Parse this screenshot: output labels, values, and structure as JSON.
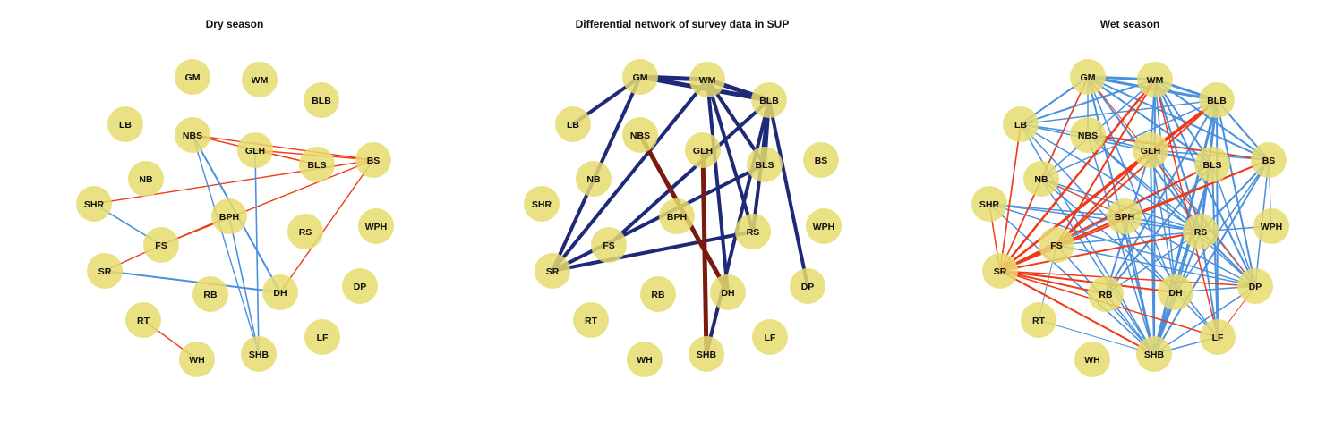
{
  "colors": {
    "node_fill": "#e6da6e",
    "positive_edge": "#4a90dc",
    "negative_edge": "#f03a17",
    "diff_positive": "#1e2a78",
    "diff_negative": "#7a1a0c"
  },
  "panels": [
    {
      "id": "dry",
      "title": "Dry season",
      "edges": [
        [
          "NBS",
          "BLS",
          "neg",
          1.4
        ],
        [
          "NBS",
          "BS",
          "neg",
          1.4
        ],
        [
          "GLH",
          "BS",
          "neg",
          1.4
        ],
        [
          "GLH",
          "BLS",
          "neg",
          1.4
        ],
        [
          "SHR",
          "BS",
          "neg",
          1.4
        ],
        [
          "FS",
          "BPH",
          "neg",
          1.4
        ],
        [
          "FS",
          "BS",
          "neg",
          1.4
        ],
        [
          "SR",
          "FS",
          "neg",
          1.4
        ],
        [
          "RT",
          "WH",
          "neg",
          1.4
        ],
        [
          "DH",
          "BS",
          "neg",
          1.4
        ],
        [
          "NBS",
          "DH",
          "pos",
          2
        ],
        [
          "NBS",
          "SHB",
          "pos",
          1.4
        ],
        [
          "GLH",
          "SHB",
          "pos",
          1.6
        ],
        [
          "SHR",
          "FS",
          "pos",
          1.6
        ],
        [
          "SR",
          "DH",
          "pos",
          2
        ],
        [
          "BPH",
          "SHB",
          "pos",
          1.6
        ]
      ]
    },
    {
      "id": "diff",
      "title": "Differential network of survey data in SUP",
      "edges": [
        [
          "GM",
          "WM",
          "dpos",
          5
        ],
        [
          "GM",
          "BLB",
          "dpos",
          5
        ],
        [
          "GM",
          "LB",
          "dpos",
          4
        ],
        [
          "GM",
          "SR",
          "dpos",
          4
        ],
        [
          "WM",
          "BLB",
          "dpos",
          5
        ],
        [
          "WM",
          "SR",
          "dpos",
          4
        ],
        [
          "WM",
          "RS",
          "dpos",
          4
        ],
        [
          "WM",
          "BLS",
          "dpos",
          4
        ],
        [
          "WM",
          "DH",
          "dpos",
          4
        ],
        [
          "BLB",
          "BLS",
          "dpos",
          4
        ],
        [
          "BLB",
          "DP",
          "dpos",
          4
        ],
        [
          "BLB",
          "SHB",
          "dpos",
          4
        ],
        [
          "BLB",
          "FS",
          "dpos",
          4
        ],
        [
          "BLB",
          "RS",
          "dpos",
          4
        ],
        [
          "BLS",
          "SR",
          "dpos",
          4
        ],
        [
          "RS",
          "SR",
          "dpos",
          4
        ],
        [
          "NBS",
          "DH",
          "dneg",
          5
        ],
        [
          "GLH",
          "SHB",
          "dneg",
          5
        ]
      ]
    },
    {
      "id": "wet",
      "title": "Wet season",
      "edges": [
        [
          "GM",
          "WM",
          "pos",
          3
        ],
        [
          "GM",
          "BLB",
          "pos",
          3
        ],
        [
          "GM",
          "LB",
          "pos",
          2
        ],
        [
          "GM",
          "NB",
          "pos",
          1.5
        ],
        [
          "GM",
          "BS",
          "pos",
          2
        ],
        [
          "GM",
          "RS",
          "pos",
          2
        ],
        [
          "GM",
          "SHB",
          "pos",
          2
        ],
        [
          "GM",
          "DH",
          "pos",
          1.5
        ],
        [
          "GM",
          "BLS",
          "pos",
          2
        ],
        [
          "GM",
          "NBS",
          "pos",
          1.5
        ],
        [
          "WM",
          "BLB",
          "pos",
          3
        ],
        [
          "WM",
          "LB",
          "pos",
          2
        ],
        [
          "WM",
          "BLS",
          "pos",
          2
        ],
        [
          "WM",
          "RS",
          "pos",
          2
        ],
        [
          "WM",
          "DP",
          "pos",
          2
        ],
        [
          "WM",
          "SHB",
          "pos",
          2
        ],
        [
          "WM",
          "DH",
          "pos",
          1.5
        ],
        [
          "WM",
          "GLH",
          "pos",
          2
        ],
        [
          "WM",
          "NB",
          "pos",
          1.5
        ],
        [
          "WM",
          "BS",
          "pos",
          2
        ],
        [
          "BLB",
          "BS",
          "pos",
          2
        ],
        [
          "BLB",
          "RS",
          "pos",
          3
        ],
        [
          "BLB",
          "SHB",
          "pos",
          3
        ],
        [
          "BLB",
          "DP",
          "pos",
          2
        ],
        [
          "BLB",
          "RB",
          "pos",
          2
        ],
        [
          "BLB",
          "LF",
          "pos",
          2
        ],
        [
          "BLB",
          "NB",
          "pos",
          1.5
        ],
        [
          "BLB",
          "LB",
          "pos",
          1.5
        ],
        [
          "LB",
          "BLS",
          "pos",
          1.5
        ],
        [
          "LB",
          "RS",
          "pos",
          1.5
        ],
        [
          "LB",
          "SHB",
          "pos",
          1.5
        ],
        [
          "LB",
          "BS",
          "pos",
          1.5
        ],
        [
          "LB",
          "DH",
          "pos",
          1.5
        ],
        [
          "NBS",
          "RS",
          "pos",
          1.5
        ],
        [
          "NBS",
          "DP",
          "pos",
          1.5
        ],
        [
          "NBS",
          "SHB",
          "pos",
          1.5
        ],
        [
          "NBS",
          "BLS",
          "pos",
          1.5
        ],
        [
          "GLH",
          "RB",
          "pos",
          2
        ],
        [
          "GLH",
          "SHB",
          "pos",
          2
        ],
        [
          "GLH",
          "RS",
          "pos",
          2
        ],
        [
          "GLH",
          "DP",
          "pos",
          1.5
        ],
        [
          "GLH",
          "DH",
          "pos",
          1.5
        ],
        [
          "GLH",
          "BS",
          "pos",
          1.5
        ],
        [
          "BLS",
          "RB",
          "pos",
          2
        ],
        [
          "BLS",
          "DH",
          "pos",
          2
        ],
        [
          "BLS",
          "SHB",
          "pos",
          2
        ],
        [
          "BLS",
          "DP",
          "pos",
          1.5
        ],
        [
          "BLS",
          "LF",
          "pos",
          2
        ],
        [
          "BS",
          "RS",
          "pos",
          2
        ],
        [
          "BS",
          "SHB",
          "pos",
          2
        ],
        [
          "BS",
          "DP",
          "pos",
          1.5
        ],
        [
          "BS",
          "DH",
          "pos",
          1.5
        ],
        [
          "NB",
          "RS",
          "pos",
          1.5
        ],
        [
          "NB",
          "SHB",
          "pos",
          1.5
        ],
        [
          "NB",
          "BPH",
          "pos",
          1.5
        ],
        [
          "NB",
          "DH",
          "pos",
          1.5
        ],
        [
          "SHR",
          "RS",
          "pos",
          1.5
        ],
        [
          "SHR",
          "BPH",
          "pos",
          1.5
        ],
        [
          "SHR",
          "DP",
          "pos",
          1.5
        ],
        [
          "SHR",
          "SHB",
          "pos",
          1.5
        ],
        [
          "BPH",
          "RS",
          "pos",
          2
        ],
        [
          "BPH",
          "SHB",
          "pos",
          1.5
        ],
        [
          "BPH",
          "DP",
          "pos",
          1.5
        ],
        [
          "BPH",
          "LF",
          "pos",
          1.5
        ],
        [
          "FS",
          "RS",
          "pos",
          1.5
        ],
        [
          "FS",
          "SHB",
          "pos",
          1.5
        ],
        [
          "FS",
          "DP",
          "pos",
          1.5
        ],
        [
          "FS",
          "BLS",
          "pos",
          1.5
        ],
        [
          "FS",
          "RT",
          "pos",
          1
        ],
        [
          "RS",
          "DP",
          "pos",
          2
        ],
        [
          "RS",
          "LF",
          "pos",
          2
        ],
        [
          "RS",
          "SHB",
          "pos",
          2
        ],
        [
          "RS",
          "RB",
          "pos",
          1.5
        ],
        [
          "RS",
          "WPH",
          "pos",
          1.5
        ],
        [
          "DH",
          "LF",
          "pos",
          1.5
        ],
        [
          "DH",
          "SHB",
          "pos",
          1.5
        ],
        [
          "DH",
          "DP",
          "pos",
          1.5
        ],
        [
          "RB",
          "SHB",
          "pos",
          1.5
        ],
        [
          "LF",
          "SHB",
          "pos",
          1.5
        ],
        [
          "DP",
          "SHB",
          "pos",
          1.5
        ],
        [
          "RT",
          "SHB",
          "pos",
          1
        ],
        [
          "BS",
          "WPH",
          "pos",
          1
        ],
        [
          "SR",
          "WM",
          "neg",
          2.5
        ],
        [
          "SR",
          "BLB",
          "neg",
          2.5
        ],
        [
          "SR",
          "GLH",
          "neg",
          2
        ],
        [
          "SR",
          "GM",
          "neg",
          1.5
        ],
        [
          "SR",
          "LB",
          "neg",
          1.5
        ],
        [
          "SR",
          "BS",
          "neg",
          2
        ],
        [
          "SR",
          "BLS",
          "neg",
          2
        ],
        [
          "SR",
          "RS",
          "neg",
          2
        ],
        [
          "SR",
          "DP",
          "neg",
          1.5
        ],
        [
          "SR",
          "DH",
          "neg",
          2
        ],
        [
          "SR",
          "RB",
          "neg",
          2
        ],
        [
          "SR",
          "SHB",
          "neg",
          2
        ],
        [
          "SR",
          "LF",
          "neg",
          1.5
        ],
        [
          "SR",
          "BPH",
          "neg",
          2
        ],
        [
          "SR",
          "NB",
          "neg",
          1.5
        ],
        [
          "SR",
          "SHR",
          "neg",
          1.5
        ],
        [
          "SR",
          "FS",
          "neg",
          2.5
        ],
        [
          "FS",
          "BLB",
          "neg",
          2
        ],
        [
          "FS",
          "GLH",
          "neg",
          2
        ],
        [
          "FS",
          "BS",
          "neg",
          1.5
        ],
        [
          "FS",
          "WM",
          "neg",
          2
        ],
        [
          "LB",
          "SR",
          "neg",
          1.5
        ],
        [
          "NBS",
          "BS",
          "neg",
          1.5
        ],
        [
          "GLH",
          "BLB",
          "neg",
          2.5
        ],
        [
          "WM",
          "LF",
          "neg",
          1.5
        ],
        [
          "GM",
          "DP",
          "neg",
          1
        ],
        [
          "DP",
          "LF",
          "neg",
          1
        ],
        [
          "NB",
          "BPH",
          "neg",
          1
        ]
      ]
    }
  ],
  "nodes": [
    "GM",
    "WM",
    "BLB",
    "LB",
    "NBS",
    "GLH",
    "BLS",
    "BS",
    "NB",
    "SHR",
    "BPH",
    "RS",
    "WPH",
    "FS",
    "SR",
    "RB",
    "DH",
    "DP",
    "RT",
    "LF",
    "WH",
    "SHB"
  ]
}
